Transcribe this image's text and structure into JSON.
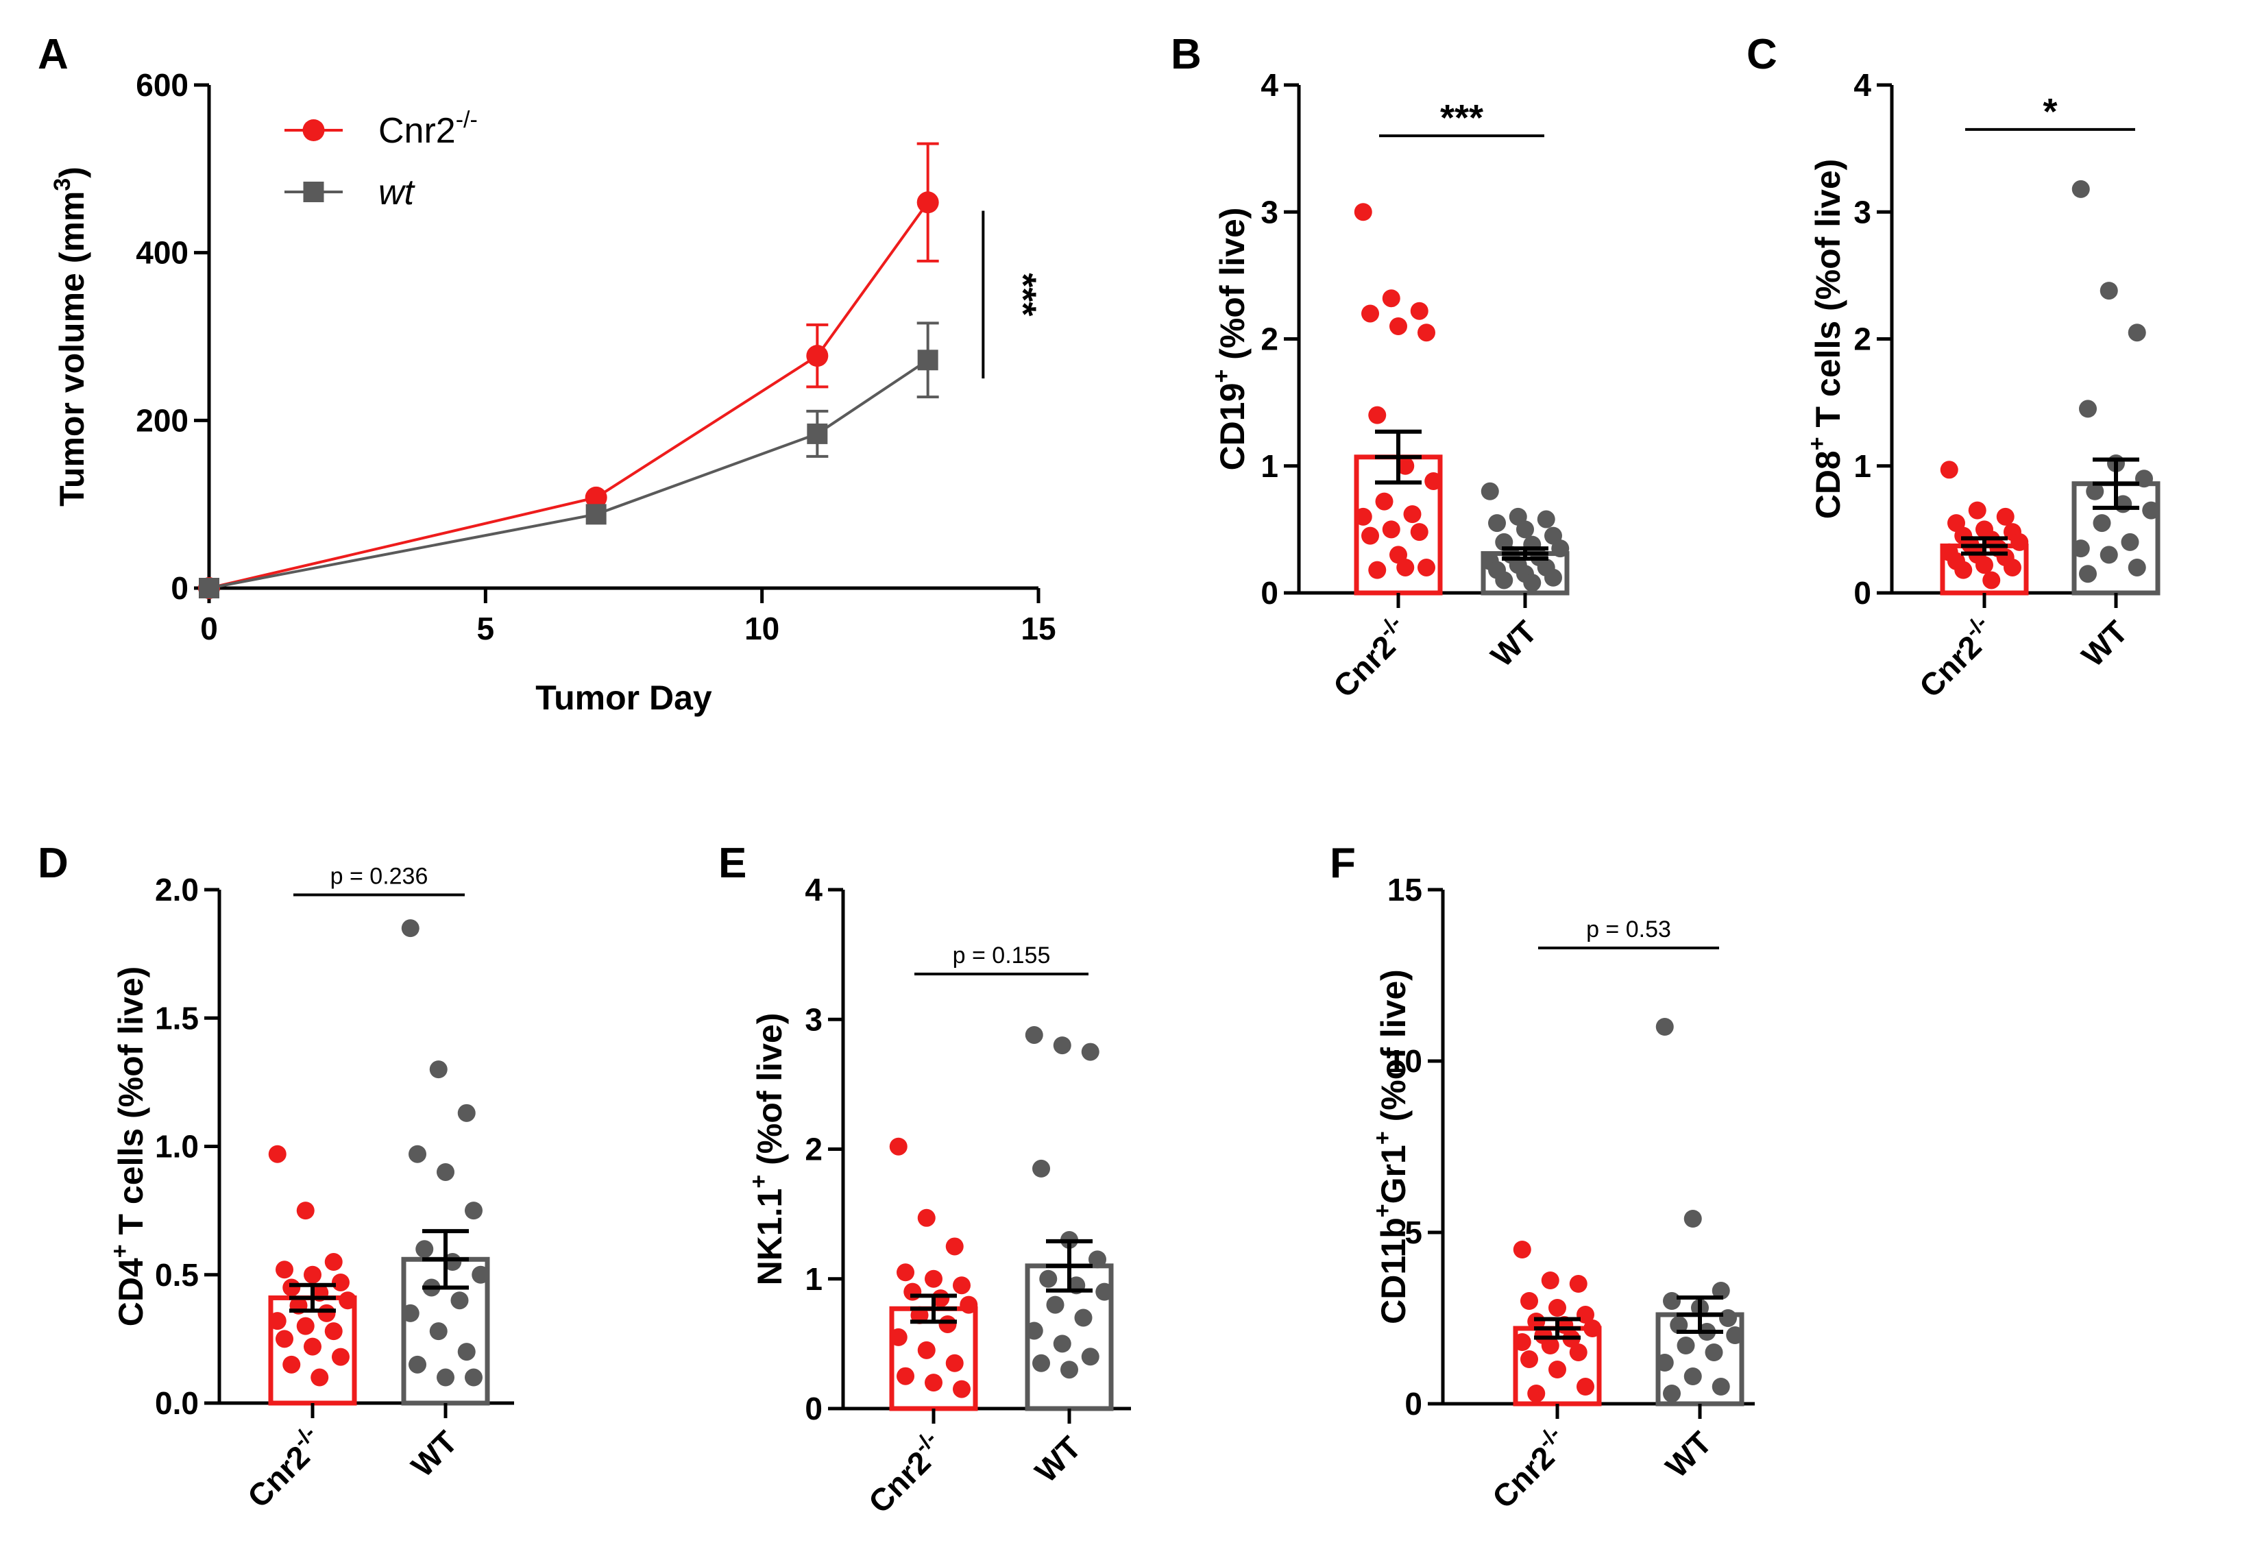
{
  "colors": {
    "cnr2": "#ee1c1c",
    "wt": "#5a5a5a",
    "axis": "#000000"
  },
  "chart_data": [
    {
      "id": "A",
      "panel_label": "A",
      "type": "line",
      "title": "",
      "xlabel": "Tumor Day",
      "ylabel": "Tumor volume (mm",
      "ylabel_sup": "3",
      "ylabel_close": ")",
      "xlim": [
        0,
        15
      ],
      "ylim": [
        0,
        600
      ],
      "xticks": [
        0,
        5,
        10,
        15
      ],
      "yticks": [
        0,
        200,
        400,
        600
      ],
      "legend_position": "top-left",
      "series": [
        {
          "name": "Cnr2",
          "name_sup": "-/-",
          "italic": false,
          "marker": "circle",
          "color": "#ee1c1c",
          "x": [
            0,
            7,
            11,
            13
          ],
          "y": [
            0,
            108,
            277,
            460
          ],
          "err": [
            0,
            5,
            37,
            70
          ]
        },
        {
          "name": "wt",
          "name_sup": "",
          "italic": true,
          "marker": "square",
          "color": "#5a5a5a",
          "x": [
            0,
            7,
            11,
            13
          ],
          "y": [
            0,
            88,
            184,
            272
          ],
          "err": [
            0,
            5,
            27,
            44
          ]
        }
      ],
      "significance": {
        "label": "***",
        "x": 14,
        "y_range": [
          250,
          450
        ]
      }
    },
    {
      "id": "B",
      "panel_label": "B",
      "type": "bar",
      "ylabel_pre": "CD19",
      "ylabel_sup": "+",
      "ylabel_post": " (%of live)",
      "ylim": [
        0,
        4
      ],
      "yticks": [
        0,
        1,
        2,
        3,
        4
      ],
      "categories": [
        "Cnr2",
        "WT"
      ],
      "category_sups": [
        "-/-",
        ""
      ],
      "means": [
        1.07,
        0.31
      ],
      "sem": [
        0.2,
        0.04
      ],
      "points": [
        [
          3.0,
          2.32,
          2.22,
          2.2,
          2.1,
          2.05,
          1.4,
          1.0,
          0.88,
          0.72,
          0.62,
          0.6,
          0.5,
          0.48,
          0.45,
          0.3,
          0.2,
          0.18,
          0.2
        ],
        [
          0.8,
          0.6,
          0.58,
          0.55,
          0.5,
          0.45,
          0.4,
          0.38,
          0.35,
          0.3,
          0.28,
          0.25,
          0.22,
          0.2,
          0.18,
          0.15,
          0.12,
          0.1,
          0.08
        ]
      ],
      "significance": {
        "label": "***",
        "y": 3.6
      }
    },
    {
      "id": "C",
      "panel_label": "C",
      "type": "bar",
      "ylabel_pre": "CD8",
      "ylabel_sup": "+",
      "ylabel_post": " T cells (%of live)",
      "ylim": [
        0,
        4
      ],
      "yticks": [
        0,
        1,
        2,
        3,
        4
      ],
      "categories": [
        "Cnr2",
        "WT"
      ],
      "category_sups": [
        "-/-",
        ""
      ],
      "means": [
        0.37,
        0.86
      ],
      "sem": [
        0.06,
        0.19
      ],
      "points": [
        [
          0.97,
          0.65,
          0.6,
          0.55,
          0.5,
          0.48,
          0.45,
          0.42,
          0.4,
          0.38,
          0.35,
          0.32,
          0.3,
          0.28,
          0.25,
          0.22,
          0.2,
          0.18,
          0.1
        ],
        [
          3.18,
          2.38,
          2.05,
          1.45,
          1.02,
          0.9,
          0.8,
          0.7,
          0.65,
          0.55,
          0.4,
          0.35,
          0.3,
          0.2,
          0.15
        ]
      ],
      "significance": {
        "label": "*",
        "y": 3.65
      }
    },
    {
      "id": "D",
      "panel_label": "D",
      "type": "bar",
      "ylabel_pre": "CD4",
      "ylabel_sup": "+",
      "ylabel_post": " T cells (%of live)",
      "ylim": [
        0,
        2.0
      ],
      "yticks": [
        0.0,
        0.5,
        1.0,
        1.5,
        2.0
      ],
      "ytick_labels": [
        "0.0",
        "0.5",
        "1.0",
        "1.5",
        "2.0"
      ],
      "categories": [
        "Cnr2",
        "WT"
      ],
      "category_sups": [
        "-/-",
        ""
      ],
      "means": [
        0.41,
        0.56
      ],
      "sem": [
        0.05,
        0.11
      ],
      "points": [
        [
          0.97,
          0.75,
          0.55,
          0.52,
          0.5,
          0.47,
          0.45,
          0.43,
          0.4,
          0.38,
          0.35,
          0.32,
          0.3,
          0.28,
          0.25,
          0.22,
          0.18,
          0.15,
          0.1
        ],
        [
          1.85,
          1.3,
          1.13,
          0.97,
          0.9,
          0.75,
          0.6,
          0.55,
          0.5,
          0.45,
          0.4,
          0.35,
          0.28,
          0.2,
          0.15,
          0.1,
          0.1
        ]
      ],
      "significance": {
        "label": "p = 0.236",
        "y": 1.98
      }
    },
    {
      "id": "E",
      "panel_label": "E",
      "type": "bar",
      "ylabel_pre": "NK1.1",
      "ylabel_sup": "+",
      "ylabel_post": " (%of live)",
      "ylim": [
        0,
        4
      ],
      "yticks": [
        0,
        1,
        2,
        3,
        4
      ],
      "categories": [
        "Cnr2",
        "WT"
      ],
      "category_sups": [
        "-/-",
        ""
      ],
      "means": [
        0.77,
        1.1
      ],
      "sem": [
        0.1,
        0.19
      ],
      "points": [
        [
          2.02,
          1.47,
          1.25,
          1.05,
          1.0,
          0.95,
          0.9,
          0.85,
          0.8,
          0.72,
          0.65,
          0.55,
          0.45,
          0.35,
          0.25,
          0.2,
          0.15
        ],
        [
          2.88,
          2.8,
          2.75,
          1.85,
          1.3,
          1.15,
          1.0,
          0.95,
          0.9,
          0.8,
          0.7,
          0.6,
          0.5,
          0.4,
          0.35,
          0.3
        ]
      ],
      "significance": {
        "label": "p = 0.155",
        "y": 3.35
      }
    },
    {
      "id": "F",
      "panel_label": "F",
      "type": "bar",
      "ylabel_pre": "CD11b",
      "ylabel_sup": "+",
      "ylabel_mid": "Gr1",
      "ylabel_sup2": "+",
      "ylabel_post": " (%of live)",
      "ylim": [
        0,
        15
      ],
      "yticks": [
        0,
        5,
        10,
        15
      ],
      "categories": [
        "Cnr2",
        "WT"
      ],
      "category_sups": [
        "-/-",
        ""
      ],
      "means": [
        2.2,
        2.6
      ],
      "sem": [
        0.27,
        0.5
      ],
      "points": [
        [
          4.5,
          3.6,
          3.5,
          3.0,
          2.8,
          2.6,
          2.4,
          2.3,
          2.2,
          2.0,
          1.9,
          1.8,
          1.7,
          1.5,
          1.3,
          1.0,
          0.5,
          0.3
        ],
        [
          11.0,
          5.4,
          3.3,
          3.0,
          2.8,
          2.5,
          2.3,
          2.1,
          2.0,
          1.7,
          1.5,
          1.2,
          0.8,
          0.5,
          0.3
        ]
      ],
      "significance": {
        "label": "p = 0.53",
        "y": 13.3
      }
    }
  ]
}
